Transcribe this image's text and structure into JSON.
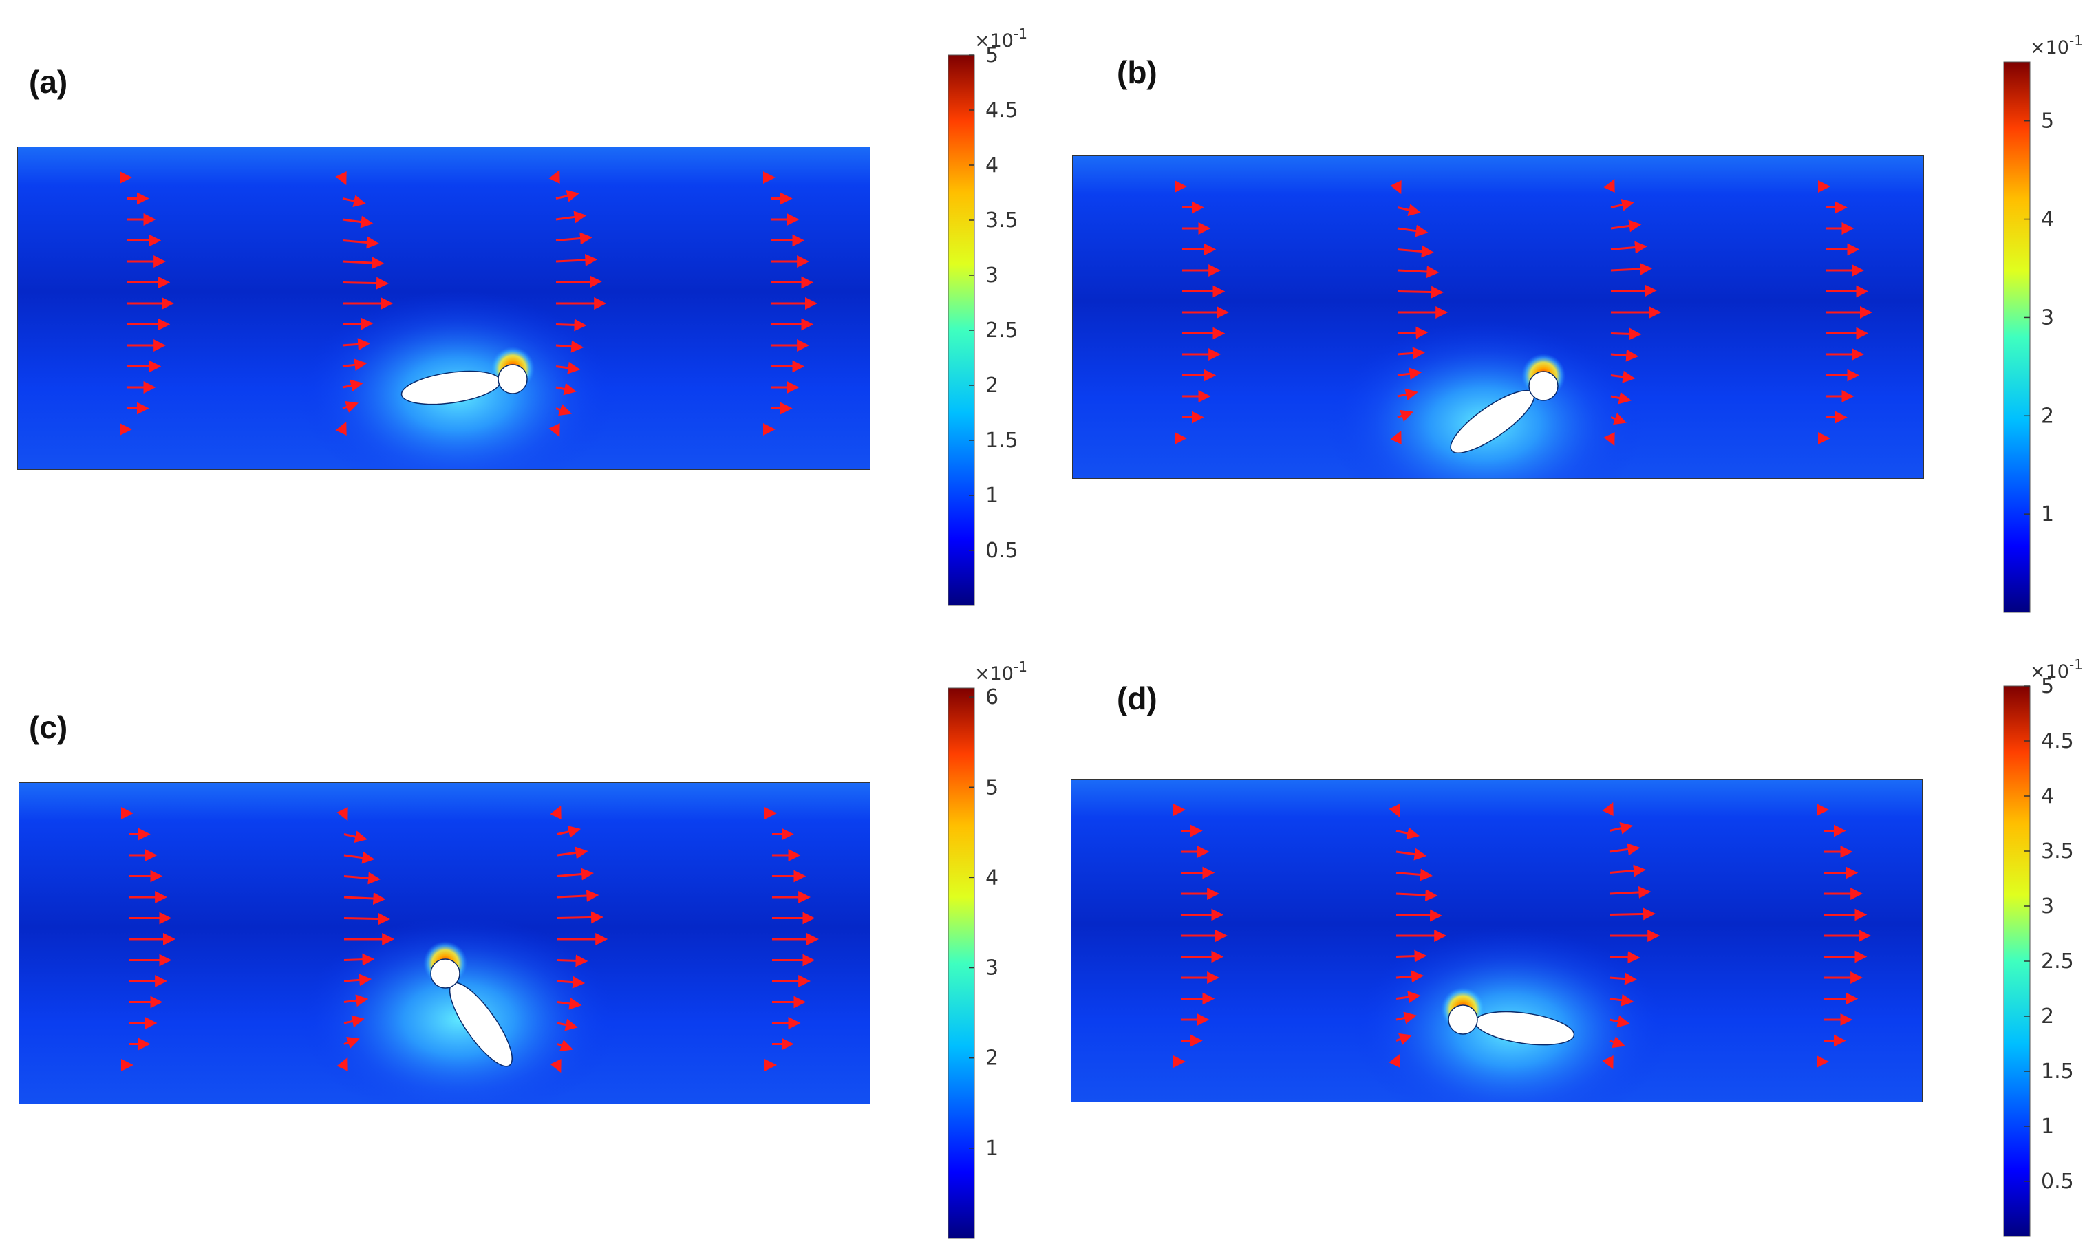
{
  "colors": {
    "background": "#0a36ee",
    "arrow": "#ff1a1a",
    "body": "#ffffff"
  },
  "panels": [
    {
      "id": "a",
      "label": "(a)",
      "colorbar": {
        "exponent_text": "×10",
        "exponent_power": "-1",
        "min": 0,
        "max": 5,
        "ticks": [
          "0.5",
          "1",
          "1.5",
          "2",
          "2.5",
          "3",
          "3.5",
          "4",
          "4.5",
          "5"
        ]
      },
      "swimmer": {
        "angle_deg": -8
      }
    },
    {
      "id": "b",
      "label": "(b)",
      "colorbar": {
        "exponent_text": "×10",
        "exponent_power": "-1",
        "min": 0,
        "max": 5.6,
        "ticks": [
          "1",
          "2",
          "3",
          "4",
          "5"
        ]
      },
      "swimmer": {
        "angle_deg": -35
      }
    },
    {
      "id": "c",
      "label": "(c)",
      "colorbar": {
        "exponent_text": "×10",
        "exponent_power": "-1",
        "min": 0,
        "max": 6.1,
        "ticks": [
          "1",
          "2",
          "3",
          "4",
          "5",
          "6"
        ]
      },
      "swimmer": {
        "angle_deg": 55
      }
    },
    {
      "id": "d",
      "label": "(d)",
      "colorbar": {
        "exponent_text": "×10",
        "exponent_power": "-1",
        "min": 0,
        "max": 5,
        "ticks": [
          "0.5",
          "1",
          "1.5",
          "2",
          "2.5",
          "3",
          "3.5",
          "4",
          "4.5",
          "5"
        ]
      },
      "swimmer": {
        "angle_deg": 8
      }
    }
  ]
}
